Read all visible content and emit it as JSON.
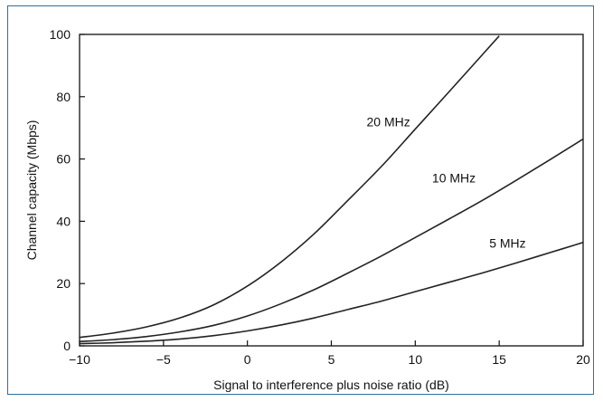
{
  "chart_data": {
    "type": "line",
    "title": "",
    "xlabel": "Signal to interference plus noise ratio (dB)",
    "ylabel": "Channel capacity (Mbps)",
    "xlim": [
      -10,
      20
    ],
    "ylim": [
      0,
      100
    ],
    "xticks": [
      -10,
      -5,
      0,
      5,
      10,
      15,
      20
    ],
    "yticks": [
      0,
      20,
      40,
      60,
      80,
      100
    ],
    "xtick_labels": [
      "−10",
      "−5",
      "0",
      "5",
      "10",
      "15",
      "20"
    ],
    "ytick_labels": [
      "0",
      "20",
      "40",
      "60",
      "80",
      "100"
    ],
    "grid": false,
    "series": [
      {
        "name": "20 MHz",
        "x": [
          -10,
          -8,
          -6,
          -4,
          -2,
          0,
          2,
          4,
          6,
          8,
          10,
          12,
          14,
          15
        ],
        "y": [
          2.7,
          4.1,
          6.1,
          9.0,
          13.2,
          19.2,
          26.9,
          36.1,
          46.8,
          57.7,
          69.6,
          81.5,
          93.5,
          99.5
        ]
      },
      {
        "name": "10 MHz",
        "x": [
          -10,
          -8,
          -6,
          -4,
          -2,
          0,
          2,
          4,
          6,
          8,
          10,
          12,
          14,
          16,
          18,
          20
        ],
        "y": [
          1.4,
          2.0,
          3.0,
          4.5,
          6.6,
          9.6,
          13.5,
          18.1,
          23.4,
          28.9,
          34.8,
          40.7,
          46.7,
          53.1,
          59.7,
          66.4
        ]
      },
      {
        "name": "5 MHz",
        "x": [
          -10,
          -8,
          -6,
          -4,
          -2,
          0,
          2,
          4,
          6,
          8,
          10,
          12,
          14,
          16,
          18,
          20
        ],
        "y": [
          0.7,
          1.0,
          1.5,
          2.2,
          3.3,
          4.8,
          6.7,
          9.0,
          11.7,
          14.4,
          17.4,
          20.4,
          23.4,
          26.6,
          29.9,
          33.2
        ]
      }
    ],
    "annotations": [
      {
        "text": "20 MHz",
        "x": 8.4,
        "y": 70.5
      },
      {
        "text": "10 MHz",
        "x": 12.3,
        "y": 52.5
      },
      {
        "text": "5 MHz",
        "x": 15.5,
        "y": 31.5
      }
    ]
  }
}
